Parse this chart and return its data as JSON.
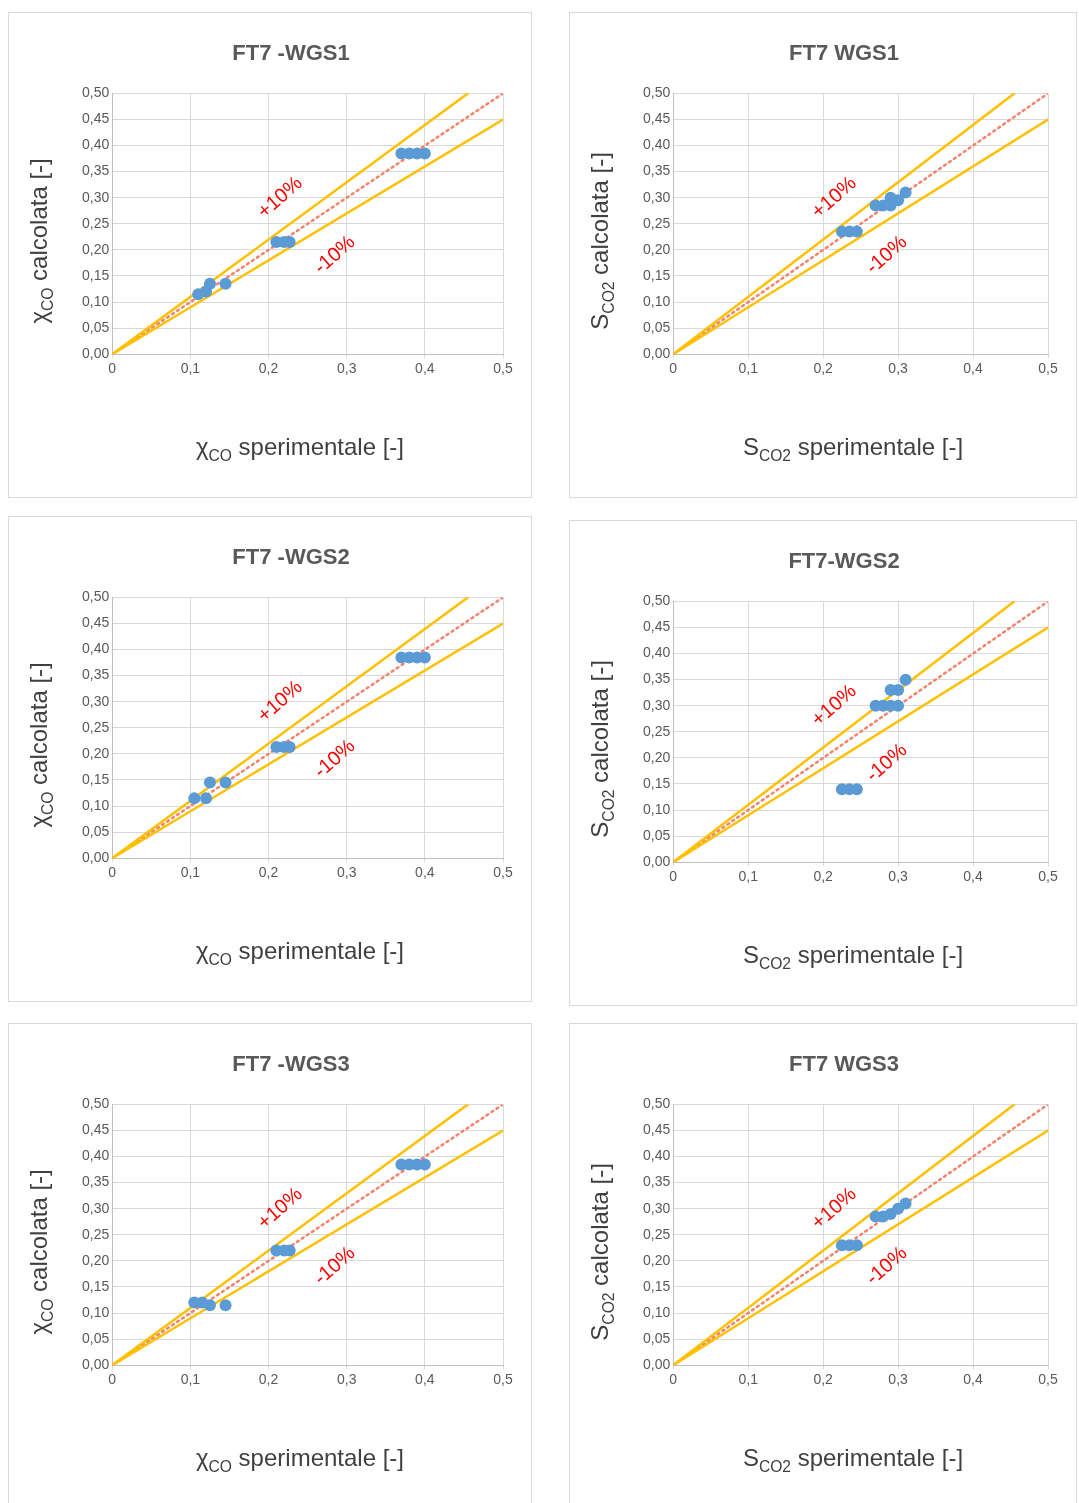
{
  "chart_data": [
    {
      "type": "scatter",
      "title": "FT7 -WGS1",
      "xlabel": "χ$_{CO}$ sperimentale [-]",
      "ylabel": "χ$_{CO}$ calcolata [-]",
      "xlim": [
        0,
        0.5
      ],
      "ylim": [
        0,
        0.5
      ],
      "xticks": [
        {
          "value": 0,
          "label": "0"
        },
        {
          "value": 0.1,
          "label": "0,1"
        },
        {
          "value": 0.2,
          "label": "0,2"
        },
        {
          "value": 0.3,
          "label": "0,3"
        },
        {
          "value": 0.4,
          "label": "0,4"
        },
        {
          "value": 0.5,
          "label": "0,5"
        }
      ],
      "yticks": [
        {
          "value": 0,
          "label": "0,00"
        },
        {
          "value": 0.05,
          "label": "0,05"
        },
        {
          "value": 0.1,
          "label": "0,10"
        },
        {
          "value": 0.15,
          "label": "0,15"
        },
        {
          "value": 0.2,
          "label": "0,20"
        },
        {
          "value": 0.25,
          "label": "0,25"
        },
        {
          "value": 0.3,
          "label": "0,30"
        },
        {
          "value": 0.35,
          "label": "0,35"
        },
        {
          "value": 0.4,
          "label": "0,40"
        },
        {
          "value": 0.45,
          "label": "0,45"
        },
        {
          "value": 0.5,
          "label": "0,50"
        }
      ],
      "grid": true,
      "legend": false,
      "series": [
        {
          "type": "scatter",
          "color": "#5b9bd5",
          "x": [
            0.11,
            0.12,
            0.125,
            0.145,
            0.21,
            0.22,
            0.227,
            0.37,
            0.38,
            0.39,
            0.4
          ],
          "values": [
            0.115,
            0.12,
            0.135,
            0.135,
            0.215,
            0.215,
            0.215,
            0.385,
            0.385,
            0.385,
            0.385
          ]
        },
        {
          "type": "line",
          "color": "#ffc000",
          "x": [
            0,
            0.455
          ],
          "values": [
            0,
            0.5
          ]
        },
        {
          "type": "line",
          "color": "#ffc000",
          "x": [
            0,
            0.5
          ],
          "values": [
            0,
            0.45
          ]
        },
        {
          "type": "line",
          "color": "#f4836b",
          "line_style": "dotted",
          "x": [
            0,
            0.5
          ],
          "values": [
            0,
            0.5
          ]
        }
      ],
      "annotations": [
        "+10%",
        "-10%"
      ]
    },
    {
      "type": "scatter",
      "title": "FT7 WGS1",
      "xlabel": "S$_{CO2}$ sperimentale [-]",
      "ylabel": "S$_{CO2}$ calcolata [-]",
      "xlim": [
        0,
        0.5
      ],
      "ylim": [
        0,
        0.5
      ],
      "xticks": [
        {
          "value": 0,
          "label": "0"
        },
        {
          "value": 0.1,
          "label": "0,1"
        },
        {
          "value": 0.2,
          "label": "0,2"
        },
        {
          "value": 0.3,
          "label": "0,3"
        },
        {
          "value": 0.4,
          "label": "0,4"
        },
        {
          "value": 0.5,
          "label": "0,5"
        }
      ],
      "yticks": [
        {
          "value": 0,
          "label": "0,00"
        },
        {
          "value": 0.05,
          "label": "0,05"
        },
        {
          "value": 0.1,
          "label": "0,10"
        },
        {
          "value": 0.15,
          "label": "0,15"
        },
        {
          "value": 0.2,
          "label": "0,20"
        },
        {
          "value": 0.25,
          "label": "0,25"
        },
        {
          "value": 0.3,
          "label": "0,30"
        },
        {
          "value": 0.35,
          "label": "0,35"
        },
        {
          "value": 0.4,
          "label": "0,40"
        },
        {
          "value": 0.45,
          "label": "0,45"
        },
        {
          "value": 0.5,
          "label": "0,50"
        }
      ],
      "grid": true,
      "legend": false,
      "series": [
        {
          "type": "scatter",
          "color": "#5b9bd5",
          "x": [
            0.225,
            0.235,
            0.245,
            0.27,
            0.28,
            0.29,
            0.29,
            0.3,
            0.31
          ],
          "values": [
            0.235,
            0.235,
            0.235,
            0.285,
            0.285,
            0.285,
            0.3,
            0.295,
            0.31
          ]
        },
        {
          "type": "line",
          "color": "#ffc000",
          "x": [
            0,
            0.455
          ],
          "values": [
            0,
            0.5
          ]
        },
        {
          "type": "line",
          "color": "#ffc000",
          "x": [
            0,
            0.5
          ],
          "values": [
            0,
            0.45
          ]
        },
        {
          "type": "line",
          "color": "#f4836b",
          "line_style": "dotted",
          "x": [
            0,
            0.5
          ],
          "values": [
            0,
            0.5
          ]
        }
      ],
      "annotations": [
        "+10%",
        "-10%"
      ]
    },
    {
      "type": "scatter",
      "title": "FT7 -WGS2",
      "xlabel": "χ$_{CO}$ sperimentale [-]",
      "ylabel": "χ$_{CO}$ calcolata [-]",
      "xlim": [
        0,
        0.5
      ],
      "ylim": [
        0,
        0.5
      ],
      "xticks": [
        {
          "value": 0,
          "label": "0"
        },
        {
          "value": 0.1,
          "label": "0,1"
        },
        {
          "value": 0.2,
          "label": "0,2"
        },
        {
          "value": 0.3,
          "label": "0,3"
        },
        {
          "value": 0.4,
          "label": "0,4"
        },
        {
          "value": 0.5,
          "label": "0,5"
        }
      ],
      "yticks": [
        {
          "value": 0,
          "label": "0,00"
        },
        {
          "value": 0.05,
          "label": "0,05"
        },
        {
          "value": 0.1,
          "label": "0,10"
        },
        {
          "value": 0.15,
          "label": "0,15"
        },
        {
          "value": 0.2,
          "label": "0,20"
        },
        {
          "value": 0.25,
          "label": "0,25"
        },
        {
          "value": 0.3,
          "label": "0,30"
        },
        {
          "value": 0.35,
          "label": "0,35"
        },
        {
          "value": 0.4,
          "label": "0,40"
        },
        {
          "value": 0.45,
          "label": "0,45"
        },
        {
          "value": 0.5,
          "label": "0,50"
        }
      ],
      "grid": true,
      "legend": false,
      "series": [
        {
          "type": "scatter",
          "color": "#5b9bd5",
          "x": [
            0.105,
            0.12,
            0.125,
            0.145,
            0.21,
            0.22,
            0.227,
            0.37,
            0.38,
            0.39,
            0.4
          ],
          "values": [
            0.115,
            0.115,
            0.145,
            0.145,
            0.213,
            0.213,
            0.213,
            0.385,
            0.385,
            0.385,
            0.385
          ]
        },
        {
          "type": "line",
          "color": "#ffc000",
          "x": [
            0,
            0.455
          ],
          "values": [
            0,
            0.5
          ]
        },
        {
          "type": "line",
          "color": "#ffc000",
          "x": [
            0,
            0.5
          ],
          "values": [
            0,
            0.45
          ]
        },
        {
          "type": "line",
          "color": "#f4836b",
          "line_style": "dotted",
          "x": [
            0,
            0.5
          ],
          "values": [
            0,
            0.5
          ]
        }
      ],
      "annotations": [
        "+10%",
        "-10%"
      ]
    },
    {
      "type": "scatter",
      "title": "FT7-WGS2",
      "xlabel": "S$_{CO2}$ sperimentale [-]",
      "ylabel": "S$_{CO2}$ calcolata [-]",
      "xlim": [
        0,
        0.5
      ],
      "ylim": [
        0,
        0.5
      ],
      "xticks": [
        {
          "value": 0,
          "label": "0"
        },
        {
          "value": 0.1,
          "label": "0,1"
        },
        {
          "value": 0.2,
          "label": "0,2"
        },
        {
          "value": 0.3,
          "label": "0,3"
        },
        {
          "value": 0.4,
          "label": "0,4"
        },
        {
          "value": 0.5,
          "label": "0,5"
        }
      ],
      "yticks": [
        {
          "value": 0,
          "label": "0,00"
        },
        {
          "value": 0.05,
          "label": "0,05"
        },
        {
          "value": 0.1,
          "label": "0,10"
        },
        {
          "value": 0.15,
          "label": "0,15"
        },
        {
          "value": 0.2,
          "label": "0,20"
        },
        {
          "value": 0.25,
          "label": "0,25"
        },
        {
          "value": 0.3,
          "label": "0,30"
        },
        {
          "value": 0.35,
          "label": "0,35"
        },
        {
          "value": 0.4,
          "label": "0,40"
        },
        {
          "value": 0.45,
          "label": "0,45"
        },
        {
          "value": 0.5,
          "label": "0,50"
        }
      ],
      "grid": true,
      "legend": false,
      "series": [
        {
          "type": "scatter",
          "color": "#5b9bd5",
          "x": [
            0.225,
            0.235,
            0.245,
            0.27,
            0.28,
            0.29,
            0.3,
            0.29,
            0.3,
            0.31
          ],
          "values": [
            0.14,
            0.14,
            0.14,
            0.3,
            0.3,
            0.3,
            0.3,
            0.33,
            0.33,
            0.35
          ]
        },
        {
          "type": "line",
          "color": "#ffc000",
          "x": [
            0,
            0.455
          ],
          "values": [
            0,
            0.5
          ]
        },
        {
          "type": "line",
          "color": "#ffc000",
          "x": [
            0,
            0.5
          ],
          "values": [
            0,
            0.45
          ]
        },
        {
          "type": "line",
          "color": "#f4836b",
          "line_style": "dotted",
          "x": [
            0,
            0.5
          ],
          "values": [
            0,
            0.5
          ]
        }
      ],
      "annotations": [
        "+10%",
        "-10%"
      ]
    },
    {
      "type": "scatter",
      "title": "FT7 -WGS3",
      "xlabel": "χ$_{CO}$ sperimentale [-]",
      "ylabel": "χ$_{CO}$ calcolata [-]",
      "xlim": [
        0,
        0.5
      ],
      "ylim": [
        0,
        0.5
      ],
      "xticks": [
        {
          "value": 0,
          "label": "0"
        },
        {
          "value": 0.1,
          "label": "0,1"
        },
        {
          "value": 0.2,
          "label": "0,2"
        },
        {
          "value": 0.3,
          "label": "0,3"
        },
        {
          "value": 0.4,
          "label": "0,4"
        },
        {
          "value": 0.5,
          "label": "0,5"
        }
      ],
      "yticks": [
        {
          "value": 0,
          "label": "0,00"
        },
        {
          "value": 0.05,
          "label": "0,05"
        },
        {
          "value": 0.1,
          "label": "0,10"
        },
        {
          "value": 0.15,
          "label": "0,15"
        },
        {
          "value": 0.2,
          "label": "0,20"
        },
        {
          "value": 0.25,
          "label": "0,25"
        },
        {
          "value": 0.3,
          "label": "0,30"
        },
        {
          "value": 0.35,
          "label": "0,35"
        },
        {
          "value": 0.4,
          "label": "0,40"
        },
        {
          "value": 0.45,
          "label": "0,45"
        },
        {
          "value": 0.5,
          "label": "0,50"
        }
      ],
      "grid": true,
      "legend": false,
      "series": [
        {
          "type": "scatter",
          "color": "#5b9bd5",
          "x": [
            0.105,
            0.115,
            0.125,
            0.145,
            0.21,
            0.22,
            0.227,
            0.37,
            0.38,
            0.39,
            0.4
          ],
          "values": [
            0.12,
            0.12,
            0.115,
            0.115,
            0.22,
            0.22,
            0.22,
            0.385,
            0.385,
            0.385,
            0.385
          ]
        },
        {
          "type": "line",
          "color": "#ffc000",
          "x": [
            0,
            0.455
          ],
          "values": [
            0,
            0.5
          ]
        },
        {
          "type": "line",
          "color": "#ffc000",
          "x": [
            0,
            0.5
          ],
          "values": [
            0,
            0.45
          ]
        },
        {
          "type": "line",
          "color": "#f4836b",
          "line_style": "dotted",
          "x": [
            0,
            0.5
          ],
          "values": [
            0,
            0.5
          ]
        }
      ],
      "annotations": [
        "+10%",
        "-10%"
      ]
    },
    {
      "type": "scatter",
      "title": "FT7 WGS3",
      "xlabel": "S$_{CO2}$ sperimentale [-]",
      "ylabel": "S$_{CO2}$ calcolata [-]",
      "xlim": [
        0,
        0.5
      ],
      "ylim": [
        0,
        0.5
      ],
      "xticks": [
        {
          "value": 0,
          "label": "0"
        },
        {
          "value": 0.1,
          "label": "0,1"
        },
        {
          "value": 0.2,
          "label": "0,2"
        },
        {
          "value": 0.3,
          "label": "0,3"
        },
        {
          "value": 0.4,
          "label": "0,4"
        },
        {
          "value": 0.5,
          "label": "0,5"
        }
      ],
      "yticks": [
        {
          "value": 0,
          "label": "0,00"
        },
        {
          "value": 0.05,
          "label": "0,05"
        },
        {
          "value": 0.1,
          "label": "0,10"
        },
        {
          "value": 0.15,
          "label": "0,15"
        },
        {
          "value": 0.2,
          "label": "0,20"
        },
        {
          "value": 0.25,
          "label": "0,25"
        },
        {
          "value": 0.3,
          "label": "0,30"
        },
        {
          "value": 0.35,
          "label": "0,35"
        },
        {
          "value": 0.4,
          "label": "0,40"
        },
        {
          "value": 0.45,
          "label": "0,45"
        },
        {
          "value": 0.5,
          "label": "0,50"
        }
      ],
      "grid": true,
      "legend": false,
      "series": [
        {
          "type": "scatter",
          "color": "#5b9bd5",
          "x": [
            0.225,
            0.235,
            0.245,
            0.27,
            0.28,
            0.29,
            0.3,
            0.31
          ],
          "values": [
            0.23,
            0.23,
            0.23,
            0.285,
            0.285,
            0.29,
            0.3,
            0.31
          ]
        },
        {
          "type": "line",
          "color": "#ffc000",
          "x": [
            0,
            0.455
          ],
          "values": [
            0,
            0.5
          ]
        },
        {
          "type": "line",
          "color": "#ffc000",
          "x": [
            0,
            0.5
          ],
          "values": [
            0,
            0.45
          ]
        },
        {
          "type": "line",
          "color": "#f4836b",
          "line_style": "dotted",
          "x": [
            0,
            0.5
          ],
          "values": [
            0,
            0.5
          ]
        }
      ],
      "annotations": [
        "+10%",
        "-10%"
      ]
    }
  ]
}
